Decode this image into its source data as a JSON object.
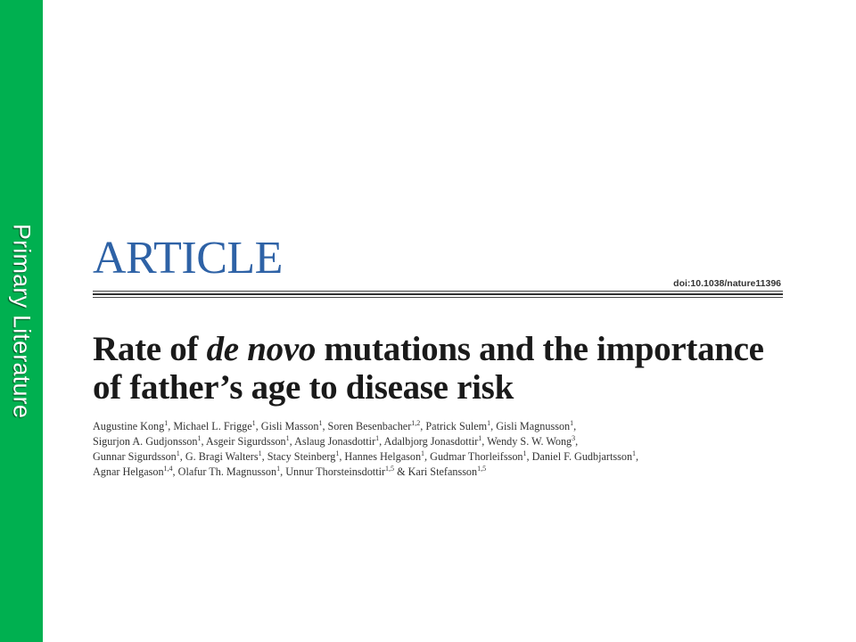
{
  "sidebar": {
    "label": "Primary Literature",
    "color": "#00b050"
  },
  "article": {
    "section_word": "ARTICLE",
    "doi": "doi:10.1038/nature11396",
    "title_part1": "Rate of ",
    "title_italic": "de novo",
    "title_part2": " mutations and the importance of father’s age to disease risk",
    "authors": [
      {
        "name": "Augustine Kong",
        "aff": "1"
      },
      {
        "name": "Michael L. Frigge",
        "aff": "1"
      },
      {
        "name": "Gisli Masson",
        "aff": "1"
      },
      {
        "name": "Soren Besenbacher",
        "aff": "1,2"
      },
      {
        "name": "Patrick Sulem",
        "aff": "1"
      },
      {
        "name": "Gisli Magnusson",
        "aff": "1"
      },
      {
        "name": "Sigurjon A. Gudjonsson",
        "aff": "1"
      },
      {
        "name": "Asgeir Sigurdsson",
        "aff": "1"
      },
      {
        "name": "Aslaug Jonasdottir",
        "aff": "1"
      },
      {
        "name": "Adalbjorg Jonasdottir",
        "aff": "1"
      },
      {
        "name": "Wendy S. W. Wong",
        "aff": "3"
      },
      {
        "name": "Gunnar Sigurdsson",
        "aff": "1"
      },
      {
        "name": "G. Bragi Walters",
        "aff": "1"
      },
      {
        "name": "Stacy Steinberg",
        "aff": "1"
      },
      {
        "name": "Hannes Helgason",
        "aff": "1"
      },
      {
        "name": "Gudmar Thorleifsson",
        "aff": "1"
      },
      {
        "name": "Daniel F. Gudbjartsson",
        "aff": "1"
      },
      {
        "name": "Agnar Helgason",
        "aff": "1,4"
      },
      {
        "name": "Olafur Th. Magnusson",
        "aff": "1"
      },
      {
        "name": "Unnur Thorsteinsdottir",
        "aff": "1,5"
      },
      {
        "name": "Kari Stefansson",
        "aff": "1,5"
      }
    ],
    "section_color": "#2e62a6"
  }
}
